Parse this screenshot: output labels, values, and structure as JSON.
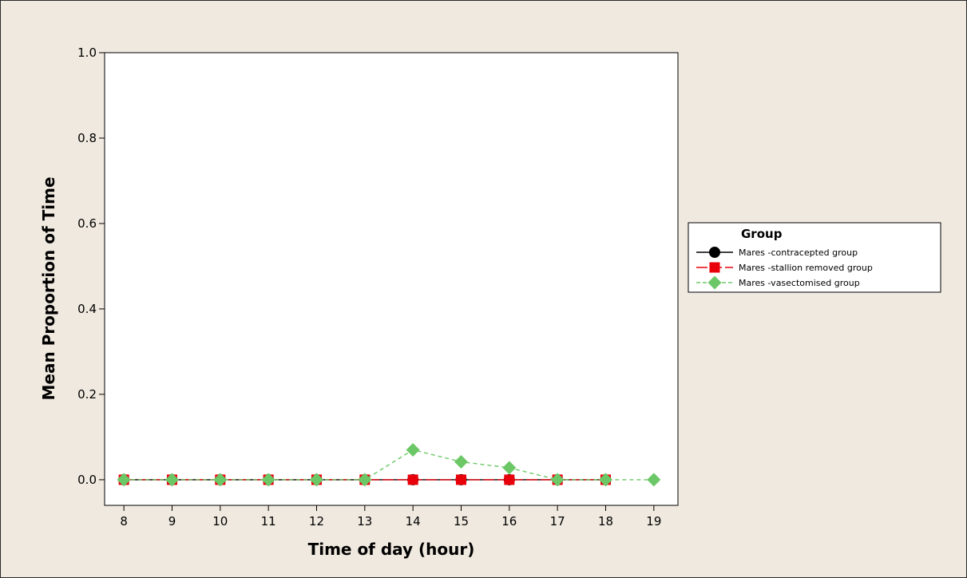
{
  "chart_data": {
    "type": "line",
    "xlabel": "Time of day (hour)",
    "ylabel": "Mean Proportion of Time",
    "xlim": [
      7.6,
      19.5
    ],
    "ylim": [
      -0.06,
      1.0
    ],
    "x_ticks": [
      "8",
      "9",
      "10",
      "11",
      "12",
      "13",
      "14",
      "15",
      "16",
      "17",
      "18",
      "19"
    ],
    "y_ticks": [
      "0.0",
      "0.2",
      "0.4",
      "0.6",
      "0.8",
      "1.0"
    ],
    "grid": false,
    "legend_title": "Group",
    "legend_position": "right",
    "series": [
      {
        "name": "Mares -contracepted group",
        "color": "#000000",
        "marker": "circle",
        "line_style": "solid",
        "x": [
          8,
          9,
          10,
          11,
          12,
          13,
          14,
          15,
          16,
          17,
          18
        ],
        "values": [
          0,
          0,
          0,
          0,
          0,
          0,
          0,
          0,
          0,
          0,
          0
        ]
      },
      {
        "name": "Mares -stallion removed group",
        "color": "#e8000b",
        "marker": "square",
        "line_style": "long-dash",
        "x": [
          8,
          9,
          10,
          11,
          12,
          13,
          14,
          15,
          16,
          17,
          18
        ],
        "values": [
          0,
          0,
          0,
          0,
          0,
          0,
          0,
          0,
          0,
          0,
          0
        ]
      },
      {
        "name": "Mares -vasectomised group",
        "color": "#6cc866",
        "marker": "diamond",
        "line_style": "dashed",
        "x": [
          8,
          9,
          10,
          11,
          12,
          13,
          14,
          15,
          16,
          17,
          18,
          19
        ],
        "values": [
          0,
          0,
          0,
          0,
          0,
          0,
          0.07,
          0.042,
          0.028,
          0,
          0,
          0
        ]
      }
    ]
  }
}
